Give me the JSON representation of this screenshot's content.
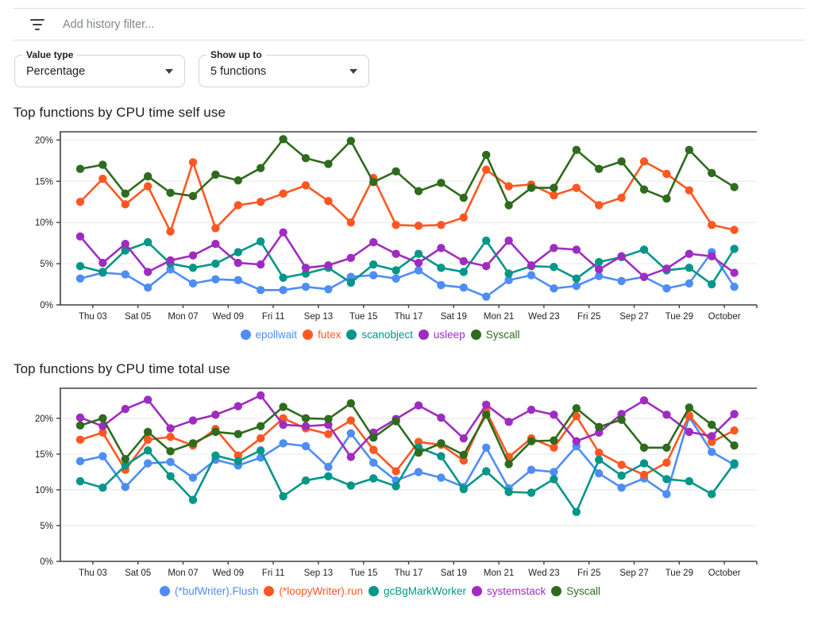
{
  "filter_bar": {
    "icon": "filter-list-icon",
    "placeholder": "Add history filter..."
  },
  "controls": {
    "value_type": {
      "label": "Value type",
      "value": "Percentage"
    },
    "show_up_to": {
      "label": "Show up to",
      "value": "5 functions"
    }
  },
  "palette": {
    "axis": "#3c4043",
    "grid": "#e9e9e9",
    "tick_label": "#1f1f1f",
    "blue": "#4e8df6",
    "orange": "#ff5722",
    "teal": "#009688",
    "purple": "#9f2cc0",
    "green": "#2e6b1e"
  },
  "chart_data": [
    {
      "type": "line",
      "title": "Top functions by CPU time self use",
      "xlabel": "",
      "ylabel": "",
      "ylim": [
        0,
        21
      ],
      "y_ticks": [
        0,
        5,
        10,
        15,
        20
      ],
      "y_tick_labels": [
        "0%",
        "5%",
        "10%",
        "15%",
        "20%"
      ],
      "grid": true,
      "legend_position": "bottom",
      "x_tick_labels": [
        "Thu 03",
        "Sat 05",
        "Mon 07",
        "Wed 09",
        "Fri 11",
        "Sep 13",
        "Tue 15",
        "Thu 17",
        "Sat 19",
        "Mon 21",
        "Wed 23",
        "Fri 25",
        "Sep 27",
        "Tue 29",
        "October"
      ],
      "series": [
        {
          "name": "epollwait",
          "color": "#4e8df6",
          "values": [
            3.2,
            3.9,
            3.7,
            2.1,
            4.3,
            2.6,
            3.1,
            3.0,
            1.8,
            1.8,
            2.2,
            1.9,
            3.4,
            3.6,
            3.2,
            4.2,
            2.4,
            2.1,
            1.0,
            3.0,
            3.6,
            2.0,
            2.3,
            3.5,
            2.9,
            3.4,
            2.0,
            2.6,
            6.4,
            2.2
          ]
        },
        {
          "name": "futex",
          "color": "#ff5722",
          "values": [
            12.5,
            15.3,
            12.2,
            14.4,
            8.9,
            17.3,
            9.3,
            12.1,
            12.5,
            13.5,
            14.5,
            12.6,
            10.0,
            15.4,
            9.7,
            9.6,
            9.7,
            10.6,
            16.4,
            14.4,
            14.6,
            13.3,
            14.2,
            12.1,
            13.0,
            17.4,
            15.9,
            13.9,
            9.7,
            9.1
          ]
        },
        {
          "name": "scanobject",
          "color": "#009688",
          "values": [
            4.7,
            4.0,
            6.6,
            7.6,
            5.0,
            4.5,
            5.0,
            6.4,
            7.7,
            3.3,
            3.8,
            4.5,
            2.7,
            4.9,
            4.2,
            6.2,
            4.5,
            4.0,
            7.8,
            3.8,
            4.7,
            4.6,
            3.2,
            5.2,
            5.8,
            6.7,
            4.2,
            4.5,
            2.5,
            6.8
          ]
        },
        {
          "name": "usleep",
          "color": "#9f2cc0",
          "values": [
            8.3,
            5.1,
            7.4,
            4.0,
            5.4,
            6.0,
            7.4,
            5.1,
            4.9,
            8.8,
            4.5,
            4.8,
            5.7,
            7.6,
            6.2,
            5.1,
            6.9,
            5.3,
            4.7,
            7.8,
            4.8,
            6.9,
            6.7,
            4.3,
            5.9,
            3.4,
            4.4,
            6.2,
            5.9,
            3.9
          ]
        },
        {
          "name": "Syscall",
          "color": "#2e6b1e",
          "values": [
            16.5,
            17.0,
            13.5,
            15.6,
            13.6,
            13.2,
            15.8,
            15.1,
            16.6,
            20.1,
            17.8,
            17.1,
            19.9,
            14.9,
            16.2,
            13.8,
            14.8,
            13.0,
            18.2,
            12.1,
            14.2,
            14.2,
            18.8,
            16.5,
            17.4,
            14.0,
            12.9,
            18.8,
            16.0,
            14.3
          ]
        }
      ]
    },
    {
      "type": "line",
      "title": "Top functions by CPU time total use",
      "xlabel": "",
      "ylabel": "",
      "ylim": [
        0,
        24.2
      ],
      "y_ticks": [
        0,
        5,
        10,
        15,
        20
      ],
      "y_tick_labels": [
        "0%",
        "5%",
        "10%",
        "15%",
        "20%"
      ],
      "grid": true,
      "legend_position": "bottom",
      "x_tick_labels": [
        "Thu 03",
        "Sat 05",
        "Mon 07",
        "Wed 09",
        "Fri 11",
        "Sep 13",
        "Tue 15",
        "Thu 17",
        "Sat 19",
        "Mon 21",
        "Wed 23",
        "Fri 25",
        "Sep 27",
        "Tue 29",
        "October"
      ],
      "series": [
        {
          "name": "(*bufWriter).Flush",
          "color": "#4e8df6",
          "values": [
            14.0,
            14.7,
            10.4,
            13.7,
            13.9,
            11.7,
            14.2,
            13.4,
            14.5,
            16.5,
            16.1,
            13.2,
            17.9,
            13.8,
            11.3,
            12.5,
            11.7,
            10.4,
            15.9,
            10.2,
            12.8,
            12.5,
            16.1,
            12.3,
            10.3,
            11.6,
            9.4,
            20.2,
            15.3,
            13.5
          ]
        },
        {
          "name": "(*loopyWriter).run",
          "color": "#ff5722",
          "values": [
            17.0,
            18.0,
            12.8,
            17.0,
            17.4,
            16.2,
            18.5,
            14.8,
            17.2,
            20.0,
            18.6,
            17.8,
            19.7,
            15.6,
            12.6,
            16.7,
            16.3,
            14.1,
            21.0,
            14.6,
            17.2,
            15.9,
            20.3,
            15.2,
            13.5,
            12.1,
            13.8,
            20.4,
            16.7,
            18.3
          ]
        },
        {
          "name": "gcBgMarkWorker",
          "color": "#009688",
          "values": [
            11.2,
            10.3,
            13.4,
            15.5,
            11.9,
            8.6,
            14.8,
            14.0,
            15.5,
            9.1,
            11.3,
            11.9,
            10.6,
            11.6,
            10.5,
            15.9,
            14.7,
            10.1,
            12.6,
            9.7,
            9.6,
            11.5,
            6.9,
            14.2,
            12.0,
            13.7,
            11.5,
            11.2,
            9.4,
            13.7
          ]
        },
        {
          "name": "systemstack",
          "color": "#9f2cc0",
          "values": [
            20.1,
            18.9,
            21.3,
            22.6,
            18.6,
            19.7,
            20.5,
            21.7,
            23.2,
            19.1,
            18.9,
            19.1,
            14.6,
            18.0,
            19.9,
            21.8,
            20.1,
            17.2,
            21.9,
            19.5,
            21.2,
            20.5,
            16.8,
            18.0,
            20.6,
            22.5,
            20.5,
            18.1,
            17.5,
            20.6
          ]
        },
        {
          "name": "Syscall",
          "color": "#2e6b1e",
          "values": [
            19.0,
            20.0,
            14.3,
            18.1,
            15.4,
            16.5,
            18.1,
            17.8,
            18.9,
            21.6,
            20.0,
            19.9,
            22.1,
            17.3,
            19.6,
            15.2,
            16.5,
            14.9,
            20.5,
            13.6,
            16.8,
            16.9,
            21.4,
            18.8,
            19.8,
            15.9,
            15.9,
            21.5,
            19.1,
            16.2
          ]
        }
      ]
    }
  ]
}
